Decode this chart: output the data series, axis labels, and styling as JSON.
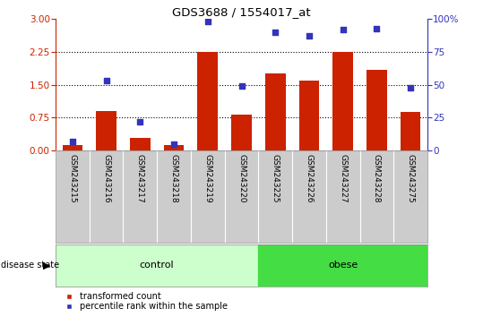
{
  "title": "GDS3688 / 1554017_at",
  "samples": [
    "GSM243215",
    "GSM243216",
    "GSM243217",
    "GSM243218",
    "GSM243219",
    "GSM243220",
    "GSM243225",
    "GSM243226",
    "GSM243227",
    "GSM243228",
    "GSM243275"
  ],
  "transformed_count": [
    0.13,
    0.9,
    0.28,
    0.12,
    2.25,
    0.82,
    1.75,
    1.6,
    2.25,
    1.85,
    0.88
  ],
  "percentile_rank": [
    7,
    53,
    22,
    5,
    98,
    49,
    90,
    87,
    92,
    93,
    48
  ],
  "ylim_left": [
    0,
    3
  ],
  "ylim_right": [
    0,
    100
  ],
  "yticks_left": [
    0,
    0.75,
    1.5,
    2.25,
    3
  ],
  "yticks_right": [
    0,
    25,
    50,
    75,
    100
  ],
  "bar_color": "#cc2200",
  "dot_color": "#3333bb",
  "n_control": 6,
  "n_obese": 5,
  "control_label": "control",
  "obese_label": "obese",
  "disease_state_label": "disease state",
  "legend_bar_label": "transformed count",
  "legend_dot_label": "percentile rank within the sample",
  "control_color": "#ccffcc",
  "obese_color": "#44dd44",
  "xticklabel_bg_color": "#cccccc",
  "dotted_lines": [
    0.75,
    1.5,
    2.25
  ],
  "bar_width": 0.6
}
